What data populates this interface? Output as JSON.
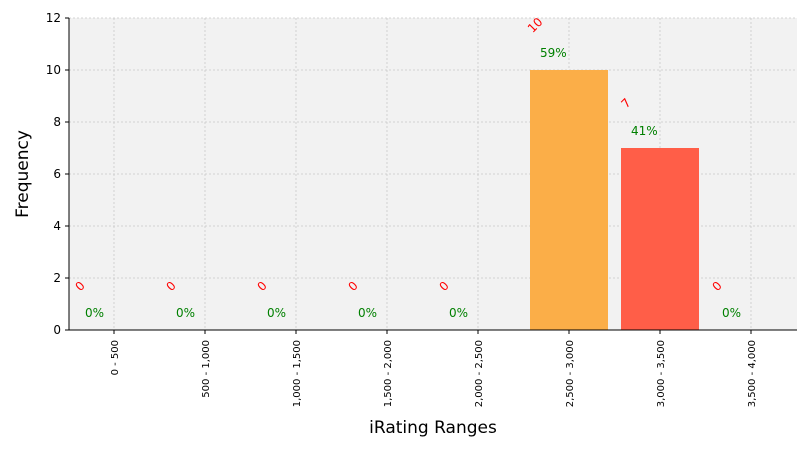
{
  "chart_data": {
    "type": "bar",
    "title": "",
    "xlabel": "iRating Ranges",
    "ylabel": "Frequency",
    "categories": [
      "0 - 500",
      "500 - 1,000",
      "1,000 - 1,500",
      "1,500 - 2,000",
      "2,000 - 2,500",
      "2,500 - 3,000",
      "3,000 - 3,500",
      "3,500 - 4,000"
    ],
    "values": [
      0,
      0,
      0,
      0,
      0,
      10,
      7,
      0
    ],
    "count_labels": [
      "0",
      "0",
      "0",
      "0",
      "0",
      "10",
      "7",
      "0"
    ],
    "percent_labels": [
      "0%",
      "0%",
      "0%",
      "0%",
      "0%",
      "59%",
      "41%",
      "0%"
    ],
    "bar_colors": [
      "#d62728",
      "#d62728",
      "#d62728",
      "#d62728",
      "#d62728",
      "#fbae48",
      "#ff5e48",
      "#d62728"
    ],
    "count_label_color": "#ff0000",
    "percent_label_color": "#008000",
    "ylim": [
      0,
      12
    ],
    "yticks": [
      "0",
      "2",
      "4",
      "6",
      "8",
      "10",
      "12"
    ],
    "grid": true,
    "plot_background": "#f2f2f2"
  }
}
